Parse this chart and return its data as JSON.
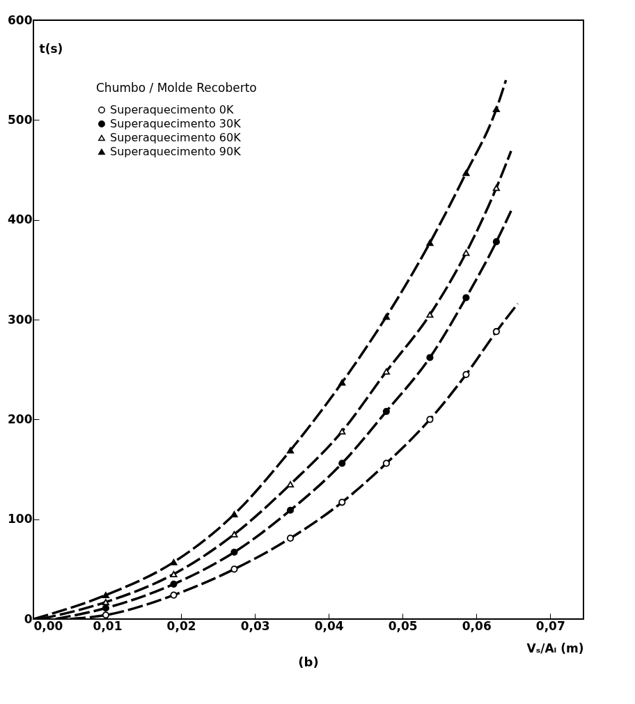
{
  "chart_data": {
    "type": "scatter",
    "xlabel": "Vₛ/Aₗ (m)",
    "ylabel": "t(s)",
    "legend_title": "Chumbo / Molde Recoberto",
    "annotations": [
      "(b)"
    ],
    "x": [
      0.0098,
      0.019,
      0.0272,
      0.0348,
      0.0418,
      0.0478,
      0.0537,
      0.0586,
      0.0627
    ],
    "series": [
      {
        "name": "Superaquecimento 0K",
        "color": "#000000",
        "marker": "circle-open",
        "values": [
          4,
          24,
          50,
          81,
          117,
          156,
          200,
          245,
          288
        ]
      },
      {
        "name": "Superaquecimento 30K",
        "color": "#000000",
        "marker": "circle",
        "values": [
          11,
          35,
          67,
          109,
          156,
          208,
          262,
          322,
          378
        ]
      },
      {
        "name": "Superaquecimento 60K",
        "color": "#000000",
        "marker": "triangle-open",
        "values": [
          17,
          45,
          85,
          135,
          188,
          248,
          305,
          367,
          432
        ]
      },
      {
        "name": "Superaquecimento 90K",
        "color": "#000000",
        "marker": "triangle",
        "values": [
          24,
          57,
          105,
          169,
          237,
          303,
          377,
          447,
          511
        ]
      },
      {
        "color": "#000000",
        "type": "line",
        "x": [
          0.005,
          0.0098,
          0.019,
          0.0272,
          0.0348,
          0.0418,
          0.0478,
          0.0537,
          0.0586,
          0.0627,
          0.0656
        ],
        "values": [
          0,
          4,
          24,
          50,
          81,
          117,
          156,
          200,
          245,
          288,
          316
        ]
      },
      {
        "color": "#000000",
        "type": "line",
        "x": [
          0.003,
          0.0098,
          0.019,
          0.0272,
          0.0348,
          0.0418,
          0.0478,
          0.0537,
          0.0586,
          0.0627,
          0.0647
        ],
        "values": [
          0,
          11,
          35,
          67,
          109,
          156,
          208,
          262,
          322,
          378,
          409
        ]
      },
      {
        "color": "#000000",
        "type": "line",
        "x": [
          0.001,
          0.0098,
          0.019,
          0.0272,
          0.0348,
          0.0418,
          0.0478,
          0.0537,
          0.0586,
          0.0627,
          0.0647
        ],
        "values": [
          0,
          17,
          45,
          85,
          135,
          188,
          248,
          305,
          367,
          432,
          469
        ]
      },
      {
        "color": "#000000",
        "type": "line",
        "x": [
          0.0,
          0.0098,
          0.019,
          0.0272,
          0.0348,
          0.0418,
          0.0478,
          0.0537,
          0.0586,
          0.0627,
          0.064
        ],
        "values": [
          0,
          24,
          57,
          105,
          169,
          237,
          303,
          377,
          447,
          511,
          540
        ]
      }
    ],
    "xlim": [
      0,
      0.0745
    ],
    "ylim": [
      0,
      600
    ],
    "xticks": [
      {
        "value": 0,
        "label": "0,00"
      },
      {
        "value": 0.01,
        "label": "0,01"
      },
      {
        "value": 0.02,
        "label": "0,02"
      },
      {
        "value": 0.03,
        "label": "0,03"
      },
      {
        "value": 0.04,
        "label": "0,04"
      },
      {
        "value": 0.05,
        "label": "0,05"
      },
      {
        "value": 0.06,
        "label": "0,06"
      },
      {
        "value": 0.07,
        "label": "0,07"
      }
    ],
    "yticks": [
      0,
      100,
      200,
      300,
      400,
      500,
      600
    ],
    "legend": "top left",
    "line_style": "dashed",
    "grid": false
  }
}
